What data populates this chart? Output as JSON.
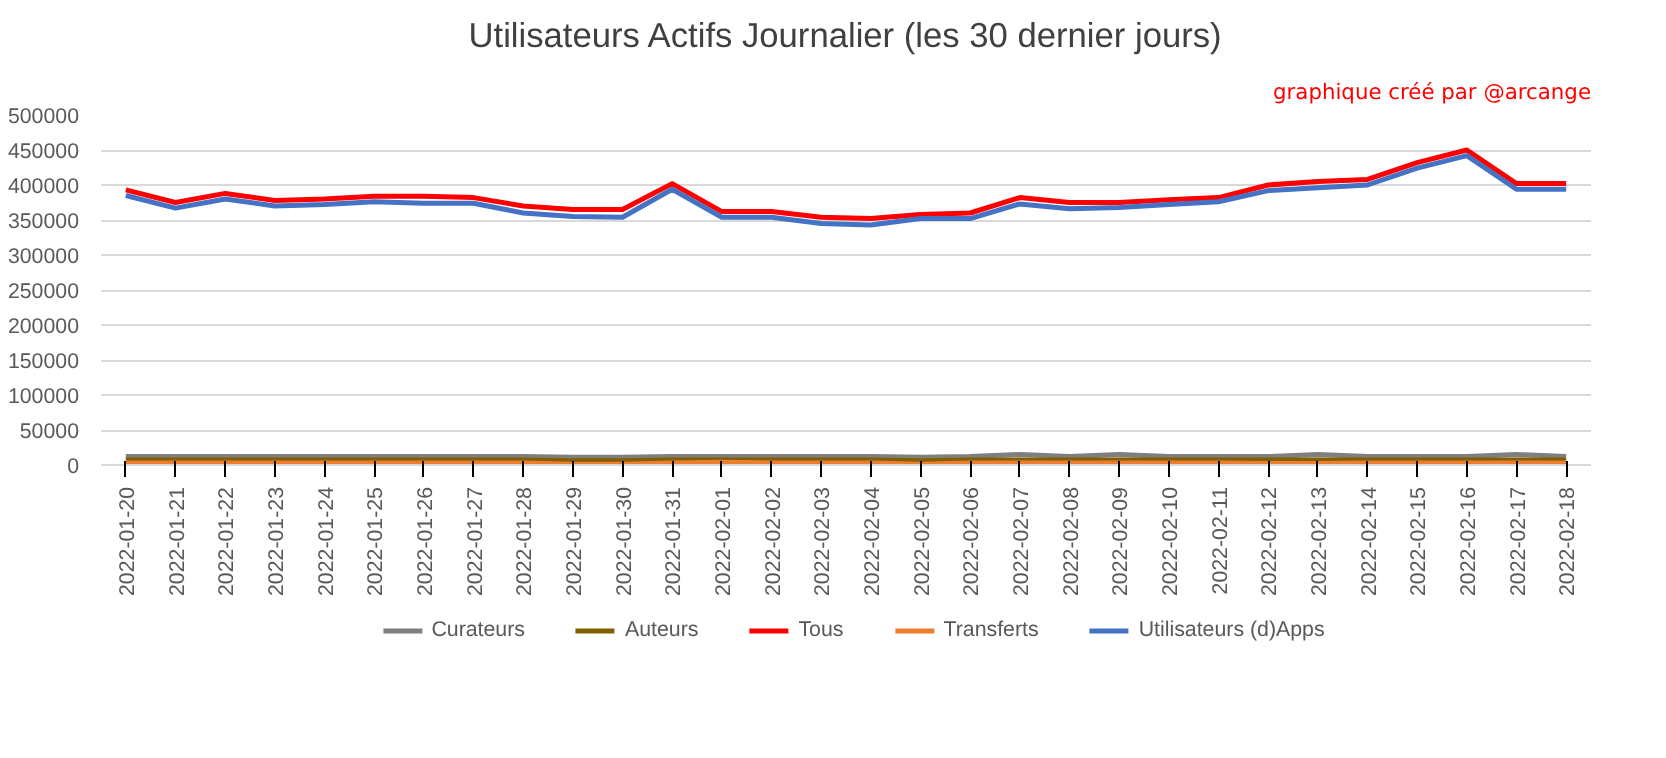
{
  "chart_data": {
    "type": "line",
    "title": "Utilisateurs Actifs Journalier (les 30 dernier jours)",
    "annotations": [
      "graphique créé par @arcange"
    ],
    "categories": [
      "2022-01-20",
      "2022-01-21",
      "2022-01-22",
      "2022-01-23",
      "2022-01-24",
      "2022-01-25",
      "2022-01-26",
      "2022-01-27",
      "2022-01-28",
      "2022-01-29",
      "2022-01-30",
      "2022-01-31",
      "2022-02-01",
      "2022-02-02",
      "2022-02-03",
      "2022-02-04",
      "2022-02-05",
      "2022-02-06",
      "2022-02-07",
      "2022-02-08",
      "2022-02-09",
      "2022-02-10",
      "2022-02-11",
      "2022-02-12",
      "2022-02-13",
      "2022-02-14",
      "2022-02-15",
      "2022-02-16",
      "2022-02-17",
      "2022-02-18"
    ],
    "series": [
      {
        "name": "Curateurs",
        "color": "#7f7f7f",
        "values": [
          12000,
          12000,
          12000,
          12000,
          12000,
          12000,
          12000,
          12000,
          12000,
          11000,
          11000,
          12000,
          12000,
          12000,
          12000,
          12000,
          11000,
          12000,
          15000,
          12000,
          15000,
          12000,
          12000,
          12000,
          15000,
          12000,
          12000,
          12000,
          15000,
          12000
        ]
      },
      {
        "name": "Auteurs",
        "color": "#806000",
        "values": [
          7000,
          7000,
          7000,
          7000,
          7000,
          7000,
          7000,
          7000,
          7000,
          6000,
          6000,
          7000,
          7000,
          7000,
          7000,
          7000,
          6000,
          7000,
          7000,
          7000,
          7000,
          7000,
          7000,
          7000,
          7000,
          7000,
          7000,
          7000,
          7000,
          7000
        ]
      },
      {
        "name": "Tous",
        "color": "#ff0000",
        "values": [
          393000,
          375000,
          388000,
          378000,
          380000,
          384000,
          384000,
          382000,
          370000,
          365000,
          365000,
          402000,
          362000,
          362000,
          354000,
          352000,
          358000,
          360000,
          382000,
          375000,
          375000,
          379000,
          382000,
          400000,
          405000,
          408000,
          432000,
          450000,
          402000,
          402000
        ]
      },
      {
        "name": "Transferts",
        "color": "#ed7d31",
        "values": [
          3000,
          3000,
          3000,
          3000,
          3000,
          3000,
          3000,
          3000,
          3000,
          1000,
          1000,
          3000,
          4000,
          3000,
          3000,
          3000,
          1000,
          3000,
          3000,
          3000,
          3000,
          3000,
          3000,
          2000,
          2000,
          3000,
          3000,
          3000,
          3000,
          3000
        ]
      },
      {
        "name": "Utilisateurs (d)Apps",
        "color": "#4472c4",
        "values": [
          385000,
          367000,
          380000,
          370000,
          372000,
          376000,
          374000,
          374000,
          360000,
          355000,
          354000,
          394000,
          354000,
          354000,
          345000,
          343000,
          352000,
          352000,
          373000,
          366000,
          368000,
          372000,
          376000,
          392000,
          396000,
          400000,
          424000,
          442000,
          394000,
          394000
        ]
      }
    ],
    "ylim": [
      0,
      500000
    ],
    "yticks": [
      0,
      50000,
      100000,
      150000,
      200000,
      250000,
      300000,
      350000,
      400000,
      450000,
      500000
    ],
    "grid": "y",
    "legend": "bottom",
    "line_style": "solid"
  }
}
